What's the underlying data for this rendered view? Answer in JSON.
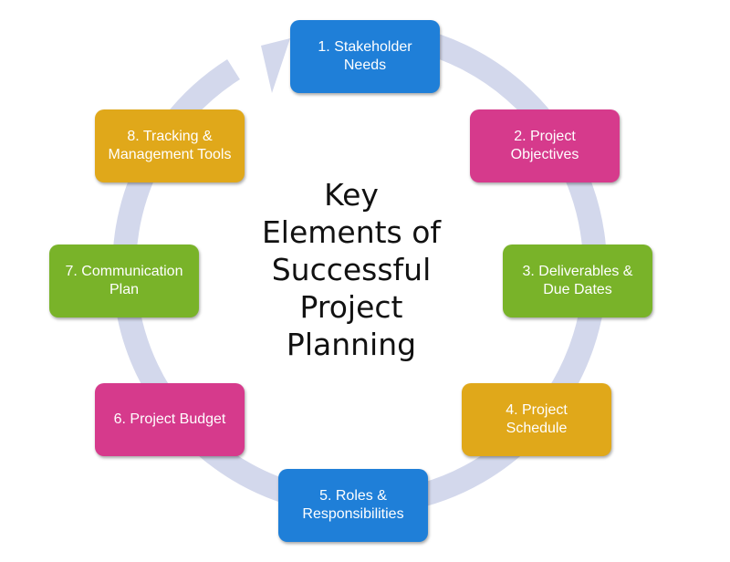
{
  "title": "Key\nElements of\nSuccessful\nProject\nPlanning",
  "colors": {
    "blue": "#1f7fd8",
    "magenta": "#d63a8c",
    "green": "#79b329",
    "orange": "#e0a81a",
    "ring": "#d3d8ec"
  },
  "steps": [
    {
      "label": "1. Stakeholder\nNeeds",
      "color": "#1f7fd8"
    },
    {
      "label": "2. Project\nObjectives",
      "color": "#d63a8c"
    },
    {
      "label": "3. Deliverables &\nDue Dates",
      "color": "#79b329"
    },
    {
      "label": "4. Project\nSchedule",
      "color": "#e0a81a"
    },
    {
      "label": "5. Roles &\nResponsibilities",
      "color": "#1f7fd8"
    },
    {
      "label": "6. Project Budget",
      "color": "#d63a8c"
    },
    {
      "label": "7. Communication\nPlan",
      "color": "#79b329"
    },
    {
      "label": "8. Tracking &\nManagement Tools",
      "color": "#e0a81a"
    }
  ]
}
